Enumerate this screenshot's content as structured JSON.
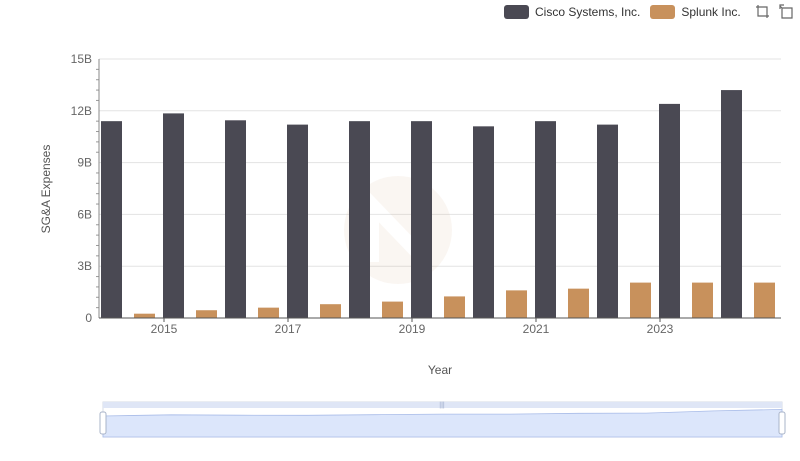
{
  "legend": {
    "items": [
      {
        "name": "Cisco Systems, Inc.",
        "color": "#4a4953"
      },
      {
        "name": "Splunk Inc.",
        "color": "#c8915c"
      }
    ]
  },
  "toolbox": {
    "icons": [
      "zoom-icon",
      "restore-icon"
    ]
  },
  "chart_data": {
    "type": "bar",
    "title": "",
    "xlabel": "Year",
    "ylabel": "SG&A Expenses",
    "categories": [
      "2014",
      "2015",
      "2016",
      "2017",
      "2018",
      "2019",
      "2020",
      "2021",
      "2022",
      "2023",
      "2024"
    ],
    "x_tick_labels": [
      "2015",
      "2017",
      "2019",
      "2021",
      "2023"
    ],
    "y_tick_labels": [
      "0",
      "3B",
      "6B",
      "9B",
      "12B",
      "15B"
    ],
    "ylim": [
      0,
      15000000000
    ],
    "grid": "horizontal",
    "legend_position": "top-right",
    "series": [
      {
        "name": "Cisco Systems, Inc.",
        "color": "#4a4953",
        "values": [
          11400000000,
          11850000000,
          11450000000,
          11200000000,
          11400000000,
          11400000000,
          11100000000,
          11400000000,
          11200000000,
          12400000000,
          13200000000
        ]
      },
      {
        "name": "Splunk Inc.",
        "color": "#c8915c",
        "values": [
          250000000,
          450000000,
          600000000,
          800000000,
          950000000,
          1250000000,
          1600000000,
          1700000000,
          2050000000,
          2050000000,
          2050000000
        ]
      }
    ],
    "data_zoom": {
      "start_percent": 0,
      "end_percent": 100
    }
  }
}
